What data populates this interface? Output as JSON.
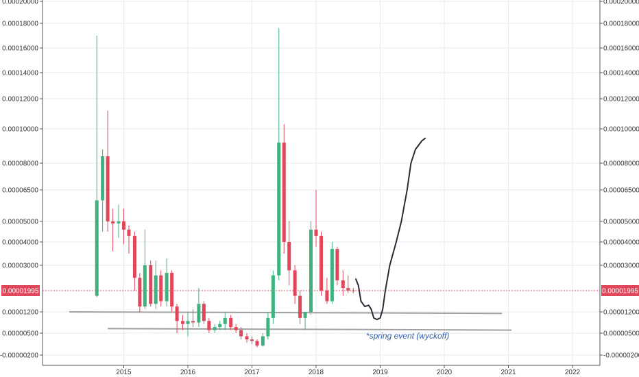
{
  "chart_data": {
    "type": "candlestick",
    "y_axis_labels": [
      "0.00020000",
      "0.00018000",
      "0.00016000",
      "0.00014000",
      "0.00012000",
      "0.00010000",
      "0.00008000",
      "0.00006500",
      "0.00005000",
      "0.00004000",
      "0.00003000",
      "0.00001995",
      "0.00001200",
      "0.00000500",
      "-0.00000200"
    ],
    "x_axis_labels": [
      "2015",
      "2016",
      "2017",
      "2018",
      "2019",
      "2020",
      "2021",
      "2022"
    ],
    "current_price": "0.00001995",
    "annotation": "*spring event (wyckoff)",
    "grid": true,
    "colors": {
      "up": "#3fb27f",
      "down": "#e0475a",
      "price_line": "#e0475a",
      "support": "#a0a0a0",
      "projection": "#2a2a35",
      "annotation": "#2f5fa8"
    },
    "candles": [
      {
        "t": 2014.58,
        "o": 1.8e-05,
        "h": 0.00017,
        "l": 1.75e-05,
        "c": 6e-05
      },
      {
        "t": 2014.67,
        "o": 6e-05,
        "h": 8.8e-05,
        "l": 4.5e-05,
        "c": 8.4e-05
      },
      {
        "t": 2014.75,
        "o": 8.4e-05,
        "h": 0.000112,
        "l": 4.5e-05,
        "c": 5e-05
      },
      {
        "t": 2014.83,
        "o": 5e-05,
        "h": 5.6e-05,
        "l": 3.6e-05,
        "c": 4.9e-05
      },
      {
        "t": 2014.92,
        "o": 4.9e-05,
        "h": 5.8e-05,
        "l": 4.2e-05,
        "c": 5e-05
      },
      {
        "t": 2015.0,
        "o": 5e-05,
        "h": 5.6e-05,
        "l": 3.9e-05,
        "c": 4.6e-05
      },
      {
        "t": 2015.08,
        "o": 4.6e-05,
        "h": 4.8e-05,
        "l": 3.5e-05,
        "c": 4.3e-05
      },
      {
        "t": 2015.17,
        "o": 4.3e-05,
        "h": 4.5e-05,
        "l": 2e-05,
        "c": 2.5e-05
      },
      {
        "t": 2015.25,
        "o": 2.5e-05,
        "h": 2.7e-05,
        "l": 1.2e-05,
        "c": 1.4e-05
      },
      {
        "t": 2015.33,
        "o": 1.4e-05,
        "h": 4.6e-05,
        "l": 1.3e-05,
        "c": 3e-05
      },
      {
        "t": 2015.42,
        "o": 3e-05,
        "h": 3.2e-05,
        "l": 1.4e-05,
        "c": 1.5e-05
      },
      {
        "t": 2015.5,
        "o": 1.5e-05,
        "h": 3.2e-05,
        "l": 1.3e-05,
        "c": 2.6e-05
      },
      {
        "t": 2015.58,
        "o": 2.6e-05,
        "h": 2.8e-05,
        "l": 1.4e-05,
        "c": 1.6e-05
      },
      {
        "t": 2015.67,
        "o": 1.6e-05,
        "h": 3.3e-05,
        "l": 1.4e-05,
        "c": 2.7e-05
      },
      {
        "t": 2015.75,
        "o": 2.7e-05,
        "h": 2.8e-05,
        "l": 1.2e-05,
        "c": 1.4e-05
      },
      {
        "t": 2015.83,
        "o": 1.4e-05,
        "h": 1.5e-05,
        "l": 5e-06,
        "c": 9e-06
      },
      {
        "t": 2015.92,
        "o": 9e-06,
        "h": 1.1e-05,
        "l": 6e-06,
        "c": 8e-06
      },
      {
        "t": 2016.0,
        "o": 8e-06,
        "h": 1.2e-05,
        "l": 4e-06,
        "c": 9e-06
      },
      {
        "t": 2016.08,
        "o": 9e-06,
        "h": 1.3e-05,
        "l": 7e-06,
        "c": 8.5e-06
      },
      {
        "t": 2016.17,
        "o": 8.5e-06,
        "h": 2.1e-05,
        "l": 7e-06,
        "c": 1.5e-05
      },
      {
        "t": 2016.25,
        "o": 1.5e-05,
        "h": 1.6e-05,
        "l": 8e-06,
        "c": 9e-06
      },
      {
        "t": 2016.33,
        "o": 9e-06,
        "h": 1e-05,
        "l": 5e-06,
        "c": 6e-06
      },
      {
        "t": 2016.42,
        "o": 6e-06,
        "h": 8e-06,
        "l": 5e-06,
        "c": 7e-06
      },
      {
        "t": 2016.5,
        "o": 7e-06,
        "h": 9e-06,
        "l": 6e-06,
        "c": 8e-06
      },
      {
        "t": 2016.58,
        "o": 8e-06,
        "h": 1.2e-05,
        "l": 6e-06,
        "c": 1e-05
      },
      {
        "t": 2016.67,
        "o": 1e-05,
        "h": 1.1e-05,
        "l": 6e-06,
        "c": 7e-06
      },
      {
        "t": 2016.75,
        "o": 7e-06,
        "h": 8e-06,
        "l": 5e-06,
        "c": 6e-06
      },
      {
        "t": 2016.83,
        "o": 6e-06,
        "h": 7e-06,
        "l": 3e-06,
        "c": 4e-06
      },
      {
        "t": 2016.92,
        "o": 4e-06,
        "h": 5e-06,
        "l": 2e-06,
        "c": 3e-06
      },
      {
        "t": 2017.0,
        "o": 3e-06,
        "h": 4e-06,
        "l": 1.5e-06,
        "c": 2.5e-06
      },
      {
        "t": 2017.08,
        "o": 2.5e-06,
        "h": 3e-06,
        "l": 5e-07,
        "c": 1e-06
      },
      {
        "t": 2017.17,
        "o": 1e-06,
        "h": 5e-06,
        "l": 8e-07,
        "c": 4e-06
      },
      {
        "t": 2017.25,
        "o": 4e-06,
        "h": 1.2e-05,
        "l": 3e-06,
        "c": 1e-05
      },
      {
        "t": 2017.33,
        "o": 1e-05,
        "h": 2.8e-05,
        "l": 8e-06,
        "c": 2.6e-05
      },
      {
        "t": 2017.42,
        "o": 2.6e-05,
        "h": 0.000176,
        "l": 2.4e-05,
        "c": 9.2e-05
      },
      {
        "t": 2017.5,
        "o": 9.2e-05,
        "h": 0.000103,
        "l": 3.5e-05,
        "c": 4e-05
      },
      {
        "t": 2017.58,
        "o": 4e-05,
        "h": 5e-05,
        "l": 2.2e-05,
        "c": 2.8e-05
      },
      {
        "t": 2017.67,
        "o": 2.8e-05,
        "h": 3e-05,
        "l": 1.5e-05,
        "c": 1.8e-05
      },
      {
        "t": 2017.75,
        "o": 1.8e-05,
        "h": 2e-05,
        "l": 8e-06,
        "c": 1e-05
      },
      {
        "t": 2017.83,
        "o": 1e-05,
        "h": 1.2e-05,
        "l": 6e-06,
        "c": 1.2e-05
      },
      {
        "t": 2017.92,
        "o": 1.2e-05,
        "h": 5e-05,
        "l": 1.1e-05,
        "c": 4.6e-05
      },
      {
        "t": 2018.0,
        "o": 4.6e-05,
        "h": 6.5e-05,
        "l": 3.8e-05,
        "c": 4.3e-05
      },
      {
        "t": 2018.08,
        "o": 4.3e-05,
        "h": 4.5e-05,
        "l": 1.8e-05,
        "c": 2e-05
      },
      {
        "t": 2018.17,
        "o": 2e-05,
        "h": 2.5e-05,
        "l": 1.5e-05,
        "c": 1.6e-05
      },
      {
        "t": 2018.25,
        "o": 1.6e-05,
        "h": 4e-05,
        "l": 1.5e-05,
        "c": 3.7e-05
      },
      {
        "t": 2018.33,
        "o": 3.7e-05,
        "h": 3.8e-05,
        "l": 2.2e-05,
        "c": 2.4e-05
      },
      {
        "t": 2018.42,
        "o": 2.4e-05,
        "h": 2.8e-05,
        "l": 1.8e-05,
        "c": 2.1e-05
      },
      {
        "t": 2018.5,
        "o": 2.1e-05,
        "h": 2.6e-05,
        "l": 1.9e-05,
        "c": 2e-05
      },
      {
        "t": 2018.58,
        "o": 2e-05,
        "h": 2.1e-05,
        "l": 1.9e-05,
        "c": 1.99e-05
      }
    ],
    "support_lines": [
      {
        "t1": 2014.15,
        "v1": 1.2e-05,
        "t2": 2020.9,
        "v2": 1.15e-05
      },
      {
        "t1": 2014.75,
        "v1": 6.5e-06,
        "t2": 2021.05,
        "v2": 6e-06
      }
    ],
    "projection_path": [
      [
        2018.62,
        2.45e-05
      ],
      [
        2018.66,
        2.2e-05
      ],
      [
        2018.7,
        1.6e-05
      ],
      [
        2018.76,
        1.4e-05
      ],
      [
        2018.82,
        1.45e-05
      ],
      [
        2018.86,
        1.3e-05
      ],
      [
        2018.9,
        1e-05
      ],
      [
        2018.95,
        9.5e-06
      ],
      [
        2019.0,
        1e-05
      ],
      [
        2019.04,
        1.3e-05
      ],
      [
        2019.08,
        2e-05
      ],
      [
        2019.15,
        3e-05
      ],
      [
        2019.25,
        4e-05
      ],
      [
        2019.33,
        5e-05
      ],
      [
        2019.42,
        6.5e-05
      ],
      [
        2019.48,
        8e-05
      ],
      [
        2019.55,
        8.8e-05
      ],
      [
        2019.65,
        9.3e-05
      ],
      [
        2019.7,
        9.45e-05
      ]
    ]
  }
}
